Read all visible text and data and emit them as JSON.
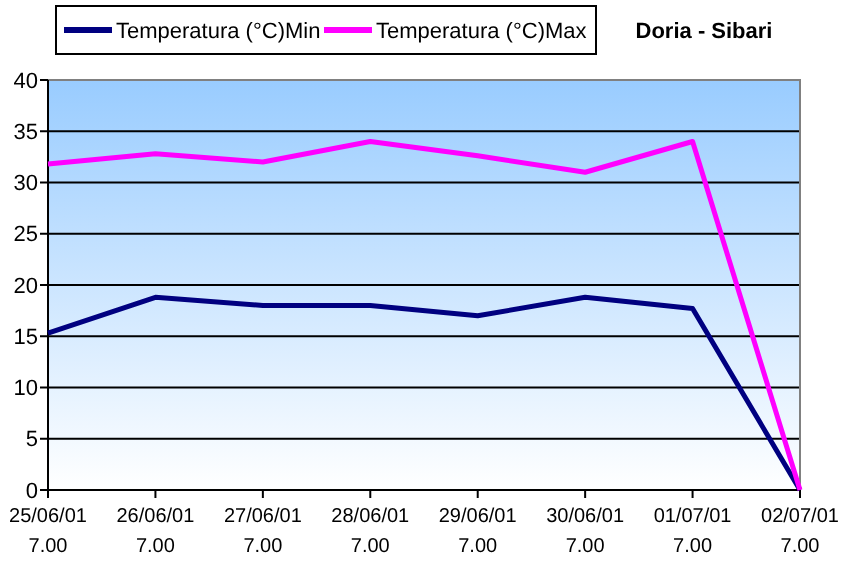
{
  "chart_data": {
    "type": "line",
    "title": "Doria - Sibari",
    "categories": [
      "25/06/01\n7.00",
      "26/06/01\n7.00",
      "27/06/01\n7.00",
      "28/06/01\n7.00",
      "29/06/01\n7.00",
      "30/06/01\n7.00",
      "01/07/01\n7.00",
      "02/07/01\n7.00"
    ],
    "series": [
      {
        "name": "Temperatura (°C)Min",
        "color": "#000080",
        "values": [
          15.3,
          18.8,
          18,
          18,
          17,
          18.8,
          17.7,
          0
        ]
      },
      {
        "name": "Temperatura (°C)Max",
        "color": "#ff00ff",
        "values": [
          31.8,
          32.8,
          32,
          34,
          32.6,
          31,
          34,
          0
        ]
      }
    ],
    "ylim": [
      0,
      40
    ],
    "yticks": [
      0,
      5,
      10,
      15,
      20,
      25,
      30,
      35,
      40
    ],
    "grid": "y",
    "legend": "top left",
    "marker": "none",
    "line_style": "solid"
  }
}
